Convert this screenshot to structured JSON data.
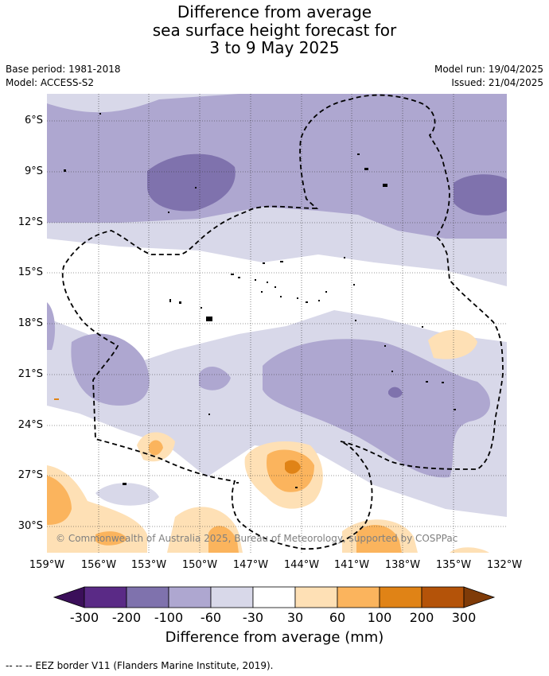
{
  "title": {
    "line1": "Difference from average",
    "line2": "sea surface height forecast for",
    "line3": "3 to 9 May 2025"
  },
  "meta": {
    "base_period": "Base period: 1981-2018",
    "model": "Model: ACCESS-S2",
    "model_run": "Model run: 19/04/2025",
    "issued": "Issued: 21/04/2025"
  },
  "map": {
    "lat_labels": [
      "6°S",
      "9°S",
      "12°S",
      "15°S",
      "18°S",
      "21°S",
      "24°S",
      "27°S",
      "30°S"
    ],
    "lon_labels": [
      "159°W",
      "156°W",
      "153°W",
      "150°W",
      "147°W",
      "144°W",
      "141°W",
      "138°W",
      "135°W",
      "132°W"
    ],
    "copyright": "© Commonwealth of Australia 2025, Bureau of Meteorology, supported by COSPPac",
    "grid": true
  },
  "colorbar": {
    "title": "Difference from average (mm)",
    "ticks": [
      "-300",
      "-200",
      "-100",
      "-60",
      "-30",
      "30",
      "60",
      "100",
      "200",
      "300"
    ],
    "colors": {
      "below_-300": "#3b0f5a",
      "-300_-200": "#5a2a86",
      "-200_-100": "#7f72ad",
      "-100_-60": "#aea7d0",
      "-60_-30": "#d8d8e9",
      "-30_30": "#ffffff",
      "30_60": "#fee0b5",
      "60_100": "#fbb45d",
      "100_200": "#e08316",
      "200_300": "#b45309",
      "above_300": "#7f3b08"
    }
  },
  "footer": "--  --  -- EEZ border V11 (Flanders Marine Institute, 2019)."
}
